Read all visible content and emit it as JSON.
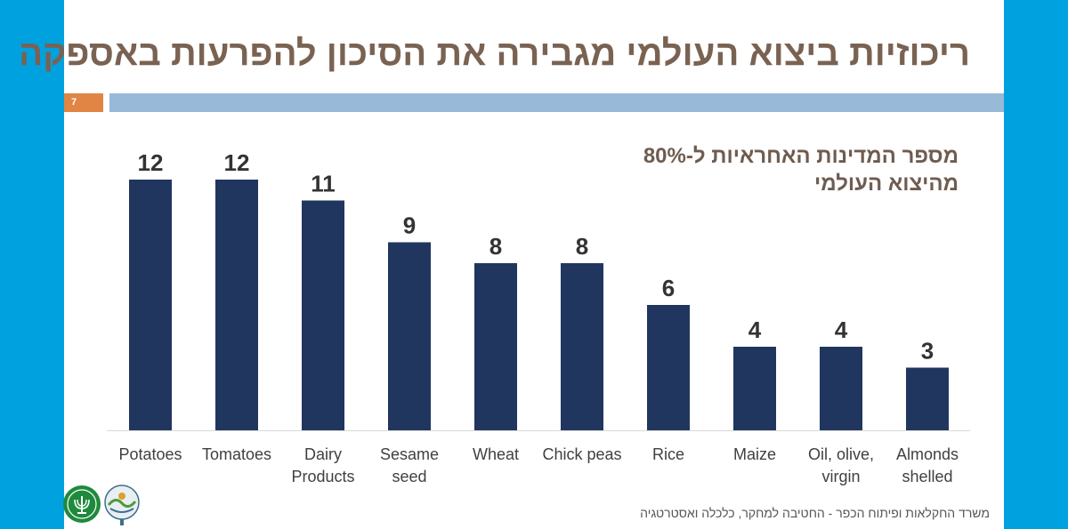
{
  "slide": {
    "title": "ריכוזיות ביצוא העולמי מגבירה את הסיכון להפרעות באספקה",
    "number": "7",
    "subtitle_line1": "מספר המדינות האחראיות ל-80%",
    "subtitle_line2": "מהיצוא העולמי",
    "footer": "משרד החקלאות ופיתוח הכפר  - החטיבה למחקר, כלכלה ואסטרטגיה"
  },
  "colors": {
    "frame": "#00a1df",
    "bar": "#21365f",
    "title": "#7a6252",
    "accent": "#e08543",
    "rule": "#98b9d8"
  },
  "logos": [
    "ministry-emblem",
    "research-division-emblem"
  ],
  "chart_data": {
    "type": "bar",
    "categories": [
      [
        "Potatoes"
      ],
      [
        "Tomatoes"
      ],
      [
        "Dairy",
        "Products"
      ],
      [
        "Sesame",
        "seed"
      ],
      [
        "Wheat"
      ],
      [
        "Chick peas"
      ],
      [
        "Rice"
      ],
      [
        "Maize"
      ],
      [
        "Oil, olive,",
        "virgin"
      ],
      [
        "Almonds",
        "shelled"
      ]
    ],
    "values": [
      12,
      12,
      11,
      9,
      8,
      8,
      6,
      4,
      4,
      3
    ],
    "ylim": [
      0,
      12
    ],
    "grid": false,
    "data_labels": true,
    "legend": "none"
  }
}
